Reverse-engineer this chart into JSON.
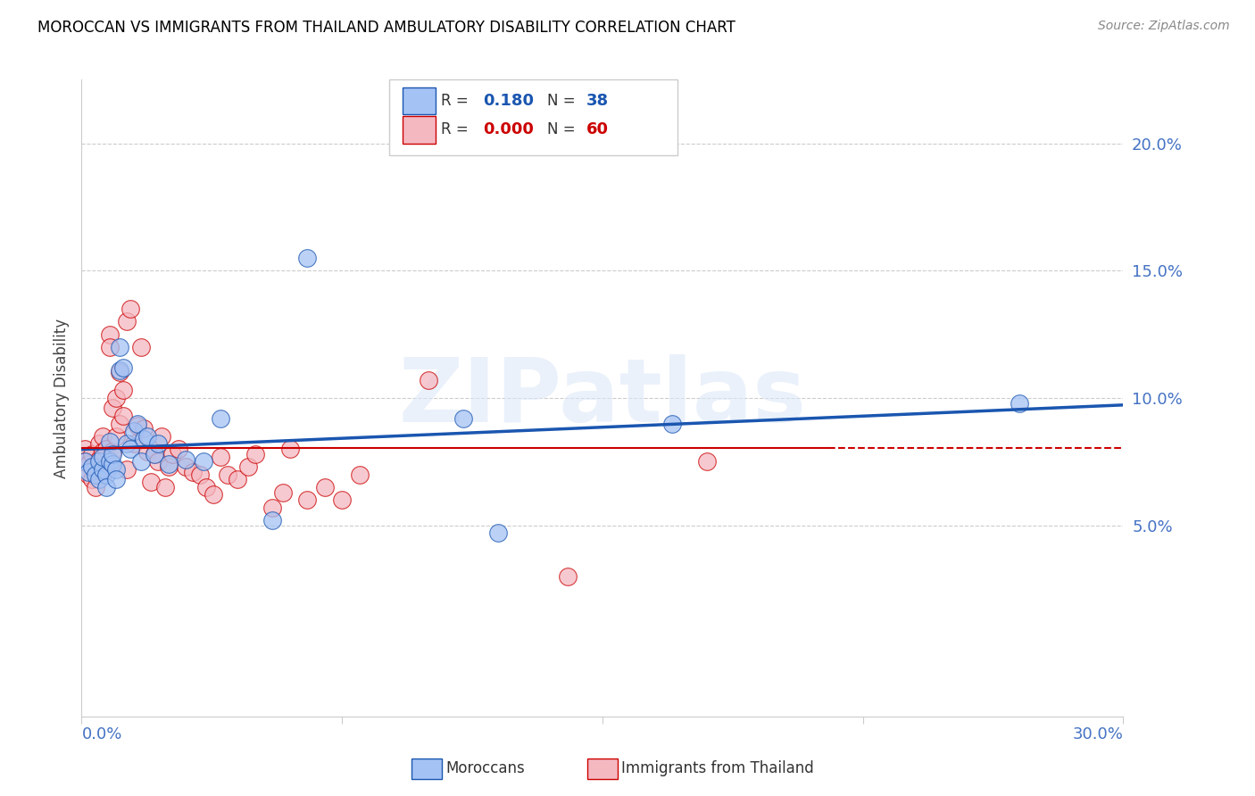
{
  "title": "MOROCCAN VS IMMIGRANTS FROM THAILAND AMBULATORY DISABILITY CORRELATION CHART",
  "source": "Source: ZipAtlas.com",
  "ylabel": "Ambulatory Disability",
  "watermark": "ZIPatlas",
  "moroccan_R": 0.18,
  "moroccan_N": 38,
  "thai_R": 0.0,
  "thai_N": 60,
  "moroccan_color": "#a4c2f4",
  "thai_color": "#f4b8c1",
  "moroccan_line_color": "#1a56b0",
  "thai_line_color": "#cc0000",
  "xlim": [
    0.0,
    0.3
  ],
  "ylim": [
    -0.025,
    0.225
  ],
  "ytick_vals": [
    0.05,
    0.1,
    0.15,
    0.2
  ],
  "ytick_labels": [
    "5.0%",
    "10.0%",
    "15.0%",
    "20.0%"
  ],
  "moroccan_x": [
    0.001,
    0.002,
    0.003,
    0.004,
    0.005,
    0.005,
    0.006,
    0.006,
    0.007,
    0.007,
    0.008,
    0.008,
    0.009,
    0.009,
    0.01,
    0.01,
    0.011,
    0.011,
    0.012,
    0.013,
    0.014,
    0.015,
    0.016,
    0.017,
    0.018,
    0.019,
    0.021,
    0.022,
    0.025,
    0.03,
    0.035,
    0.04,
    0.055,
    0.065,
    0.11,
    0.12,
    0.17,
    0.27
  ],
  "moroccan_y": [
    0.075,
    0.071,
    0.073,
    0.07,
    0.068,
    0.075,
    0.072,
    0.077,
    0.07,
    0.065,
    0.075,
    0.083,
    0.074,
    0.078,
    0.072,
    0.068,
    0.12,
    0.111,
    0.112,
    0.082,
    0.08,
    0.087,
    0.09,
    0.075,
    0.084,
    0.085,
    0.078,
    0.082,
    0.074,
    0.076,
    0.075,
    0.092,
    0.052,
    0.155,
    0.092,
    0.047,
    0.09,
    0.098
  ],
  "thai_x": [
    0.001,
    0.001,
    0.002,
    0.002,
    0.003,
    0.003,
    0.004,
    0.004,
    0.005,
    0.005,
    0.006,
    0.006,
    0.007,
    0.007,
    0.008,
    0.008,
    0.009,
    0.009,
    0.01,
    0.01,
    0.011,
    0.011,
    0.012,
    0.012,
    0.013,
    0.013,
    0.014,
    0.015,
    0.016,
    0.017,
    0.018,
    0.019,
    0.02,
    0.021,
    0.022,
    0.023,
    0.024,
    0.025,
    0.026,
    0.028,
    0.03,
    0.032,
    0.034,
    0.036,
    0.038,
    0.04,
    0.042,
    0.045,
    0.048,
    0.05,
    0.055,
    0.058,
    0.06,
    0.065,
    0.07,
    0.075,
    0.08,
    0.1,
    0.14,
    0.18
  ],
  "thai_y": [
    0.08,
    0.075,
    0.074,
    0.07,
    0.078,
    0.068,
    0.073,
    0.065,
    0.076,
    0.082,
    0.079,
    0.085,
    0.072,
    0.08,
    0.125,
    0.12,
    0.096,
    0.079,
    0.085,
    0.1,
    0.11,
    0.09,
    0.103,
    0.093,
    0.13,
    0.072,
    0.135,
    0.082,
    0.089,
    0.12,
    0.088,
    0.079,
    0.067,
    0.078,
    0.075,
    0.085,
    0.065,
    0.073,
    0.078,
    0.08,
    0.073,
    0.071,
    0.07,
    0.065,
    0.062,
    0.077,
    0.07,
    0.068,
    0.073,
    0.078,
    0.057,
    0.063,
    0.08,
    0.06,
    0.065,
    0.06,
    0.07,
    0.107,
    0.03,
    0.075
  ],
  "background_color": "#ffffff",
  "grid_color": "#cccccc",
  "title_color": "#000000",
  "source_color": "#888888",
  "ytick_color": "#4472c4",
  "legend_label_moroccan": "Moroccans",
  "legend_label_thai": "Immigrants from Thailand"
}
